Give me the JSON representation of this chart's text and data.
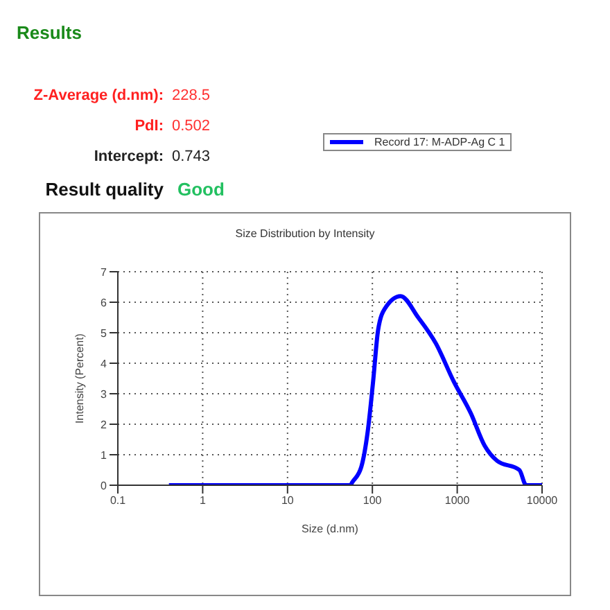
{
  "chart_data": [
    {
      "type": "other",
      "title": "Results",
      "annotations": [
        "Z-Average (d.nm):",
        "228.5",
        "PdI:",
        "0.502",
        "Intercept:",
        "0.743",
        "Result quality",
        "Good"
      ]
    },
    {
      "type": "line",
      "title": "Size Distribution by Intensity",
      "xlabel": "Size (d.nm)",
      "ylabel": "Intensity (Percent)",
      "log": "x",
      "xlim": [
        0.1,
        10000
      ],
      "xticks": [
        0.1,
        1,
        10,
        100,
        1000,
        10000
      ],
      "ylim": [
        0,
        7
      ],
      "yticks": [
        0,
        1,
        2,
        3,
        4,
        5,
        6,
        7
      ],
      "grid": true,
      "legend": "top right",
      "marker": "none",
      "line_style": "solid",
      "x": [
        0.4,
        1,
        10,
        55,
        58,
        74,
        88,
        102,
        117,
        141,
        215,
        347,
        560,
        910,
        1450,
        2100,
        2950,
        5400,
        6500,
        10000
      ],
      "series": [
        {
          "name": "Record 17: M-ADP-Ag C 1",
          "color": "#0000ff",
          "values": [
            0,
            0,
            0,
            0,
            0.1,
            0.6,
            1.75,
            3.4,
            5.1,
            5.8,
            6.2,
            5.5,
            4.65,
            3.4,
            2.35,
            1.3,
            0.8,
            0.5,
            0,
            0
          ]
        }
      ]
    }
  ]
}
